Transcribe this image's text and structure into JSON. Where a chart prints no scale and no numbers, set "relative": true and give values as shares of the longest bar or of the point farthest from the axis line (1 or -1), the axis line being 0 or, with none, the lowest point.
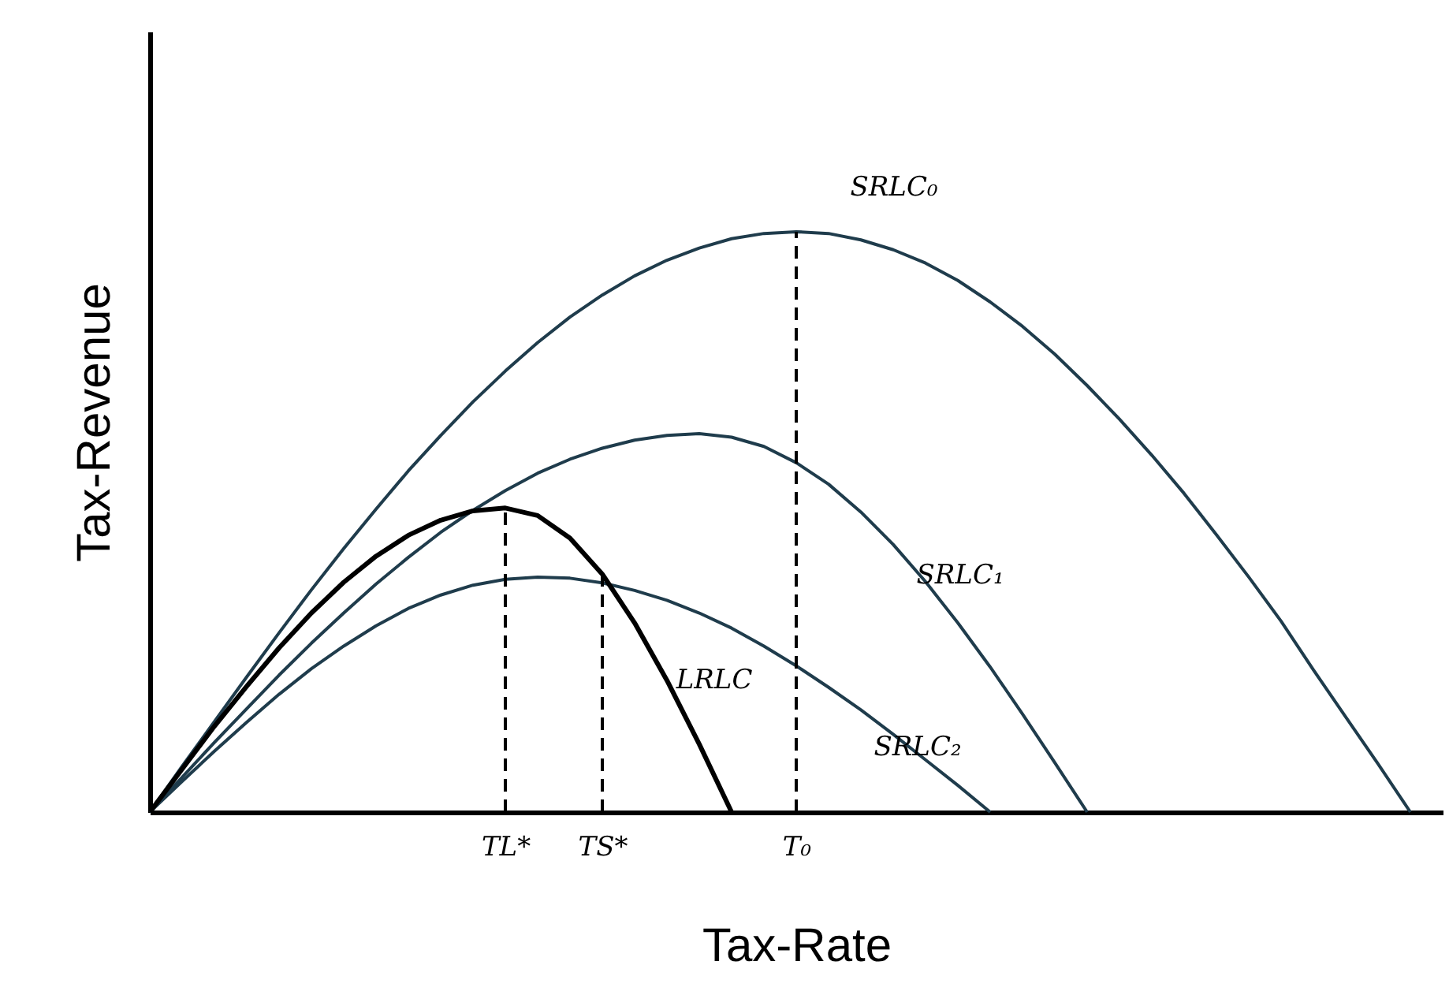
{
  "chart_data": {
    "type": "line",
    "relative": true,
    "xlabel": "Tax-Rate",
    "ylabel": "Tax-Revenue",
    "grid": false,
    "marker": "none",
    "tick_labels": "x",
    "categories": [
      null,
      null,
      null,
      null,
      null,
      null,
      null,
      null,
      null,
      null,
      null,
      "TL*",
      null,
      null,
      "TS*",
      null,
      null,
      null,
      null,
      null,
      "T₀",
      null,
      null,
      null,
      null,
      null,
      null,
      null,
      null,
      null,
      null,
      null,
      null,
      null,
      null,
      null,
      null,
      null,
      null,
      null,
      null
    ],
    "series": [
      {
        "name": "SRLC₀",
        "color": "#1f3c4c",
        "values": [
          0,
          0.079,
          0.156,
          0.233,
          0.309,
          0.383,
          0.454,
          0.522,
          0.588,
          0.649,
          0.707,
          0.76,
          0.809,
          0.853,
          0.891,
          0.924,
          0.951,
          0.972,
          0.988,
          0.997,
          1,
          0.997,
          0.986,
          0.969,
          0.946,
          0.916,
          0.879,
          0.837,
          0.789,
          0.735,
          0.677,
          0.615,
          0.549,
          0.478,
          0.405,
          0.329,
          0.245,
          0.164,
          0.083,
          0,
          null
        ]
      },
      {
        "name": "SRLC₁",
        "color": "#1f3c4c",
        "values": [
          0,
          0.06,
          0.12,
          0.178,
          0.236,
          0.291,
          0.343,
          0.393,
          0.439,
          0.482,
          0.52,
          0.554,
          0.584,
          0.608,
          0.627,
          0.641,
          0.649,
          0.652,
          0.646,
          0.63,
          0.602,
          0.565,
          0.517,
          0.461,
          0.397,
          0.326,
          0.25,
          0.169,
          0.085,
          0,
          null,
          null,
          null,
          null,
          null,
          null,
          null,
          null,
          null,
          null,
          null
        ]
      },
      {
        "name": "SRLC₂",
        "color": "#1f3c4c",
        "values": [
          0,
          0.053,
          0.105,
          0.155,
          0.203,
          0.247,
          0.286,
          0.321,
          0.351,
          0.374,
          0.391,
          0.401,
          0.405,
          0.403,
          0.395,
          0.382,
          0.365,
          0.343,
          0.317,
          0.286,
          0.252,
          0.215,
          0.176,
          0.134,
          0.09,
          0.046,
          0,
          null,
          null,
          null,
          null,
          null,
          null,
          null,
          null,
          null,
          null,
          null,
          null,
          null,
          null
        ]
      },
      {
        "name": "LRLC",
        "color": "#000000",
        "values": [
          0,
          0.074,
          0.148,
          0.217,
          0.283,
          0.343,
          0.396,
          0.441,
          0.477,
          0.503,
          0.519,
          0.524,
          0.511,
          0.472,
          0.41,
          0.326,
          0.227,
          0.117,
          0,
          null,
          null,
          null,
          null,
          null,
          null,
          null,
          null,
          null,
          null,
          null,
          null,
          null,
          null,
          null,
          null,
          null,
          null,
          null,
          null,
          null,
          null
        ]
      }
    ],
    "ref_lines": [
      {
        "axis": "x",
        "value": "TL*",
        "color": "#000000",
        "line_style": "dashed"
      },
      {
        "axis": "x",
        "value": "TS*",
        "color": "#000000",
        "line_style": "dashed"
      },
      {
        "axis": "x",
        "value": "T₀",
        "color": "#000000",
        "line_style": "dashed"
      }
    ]
  }
}
